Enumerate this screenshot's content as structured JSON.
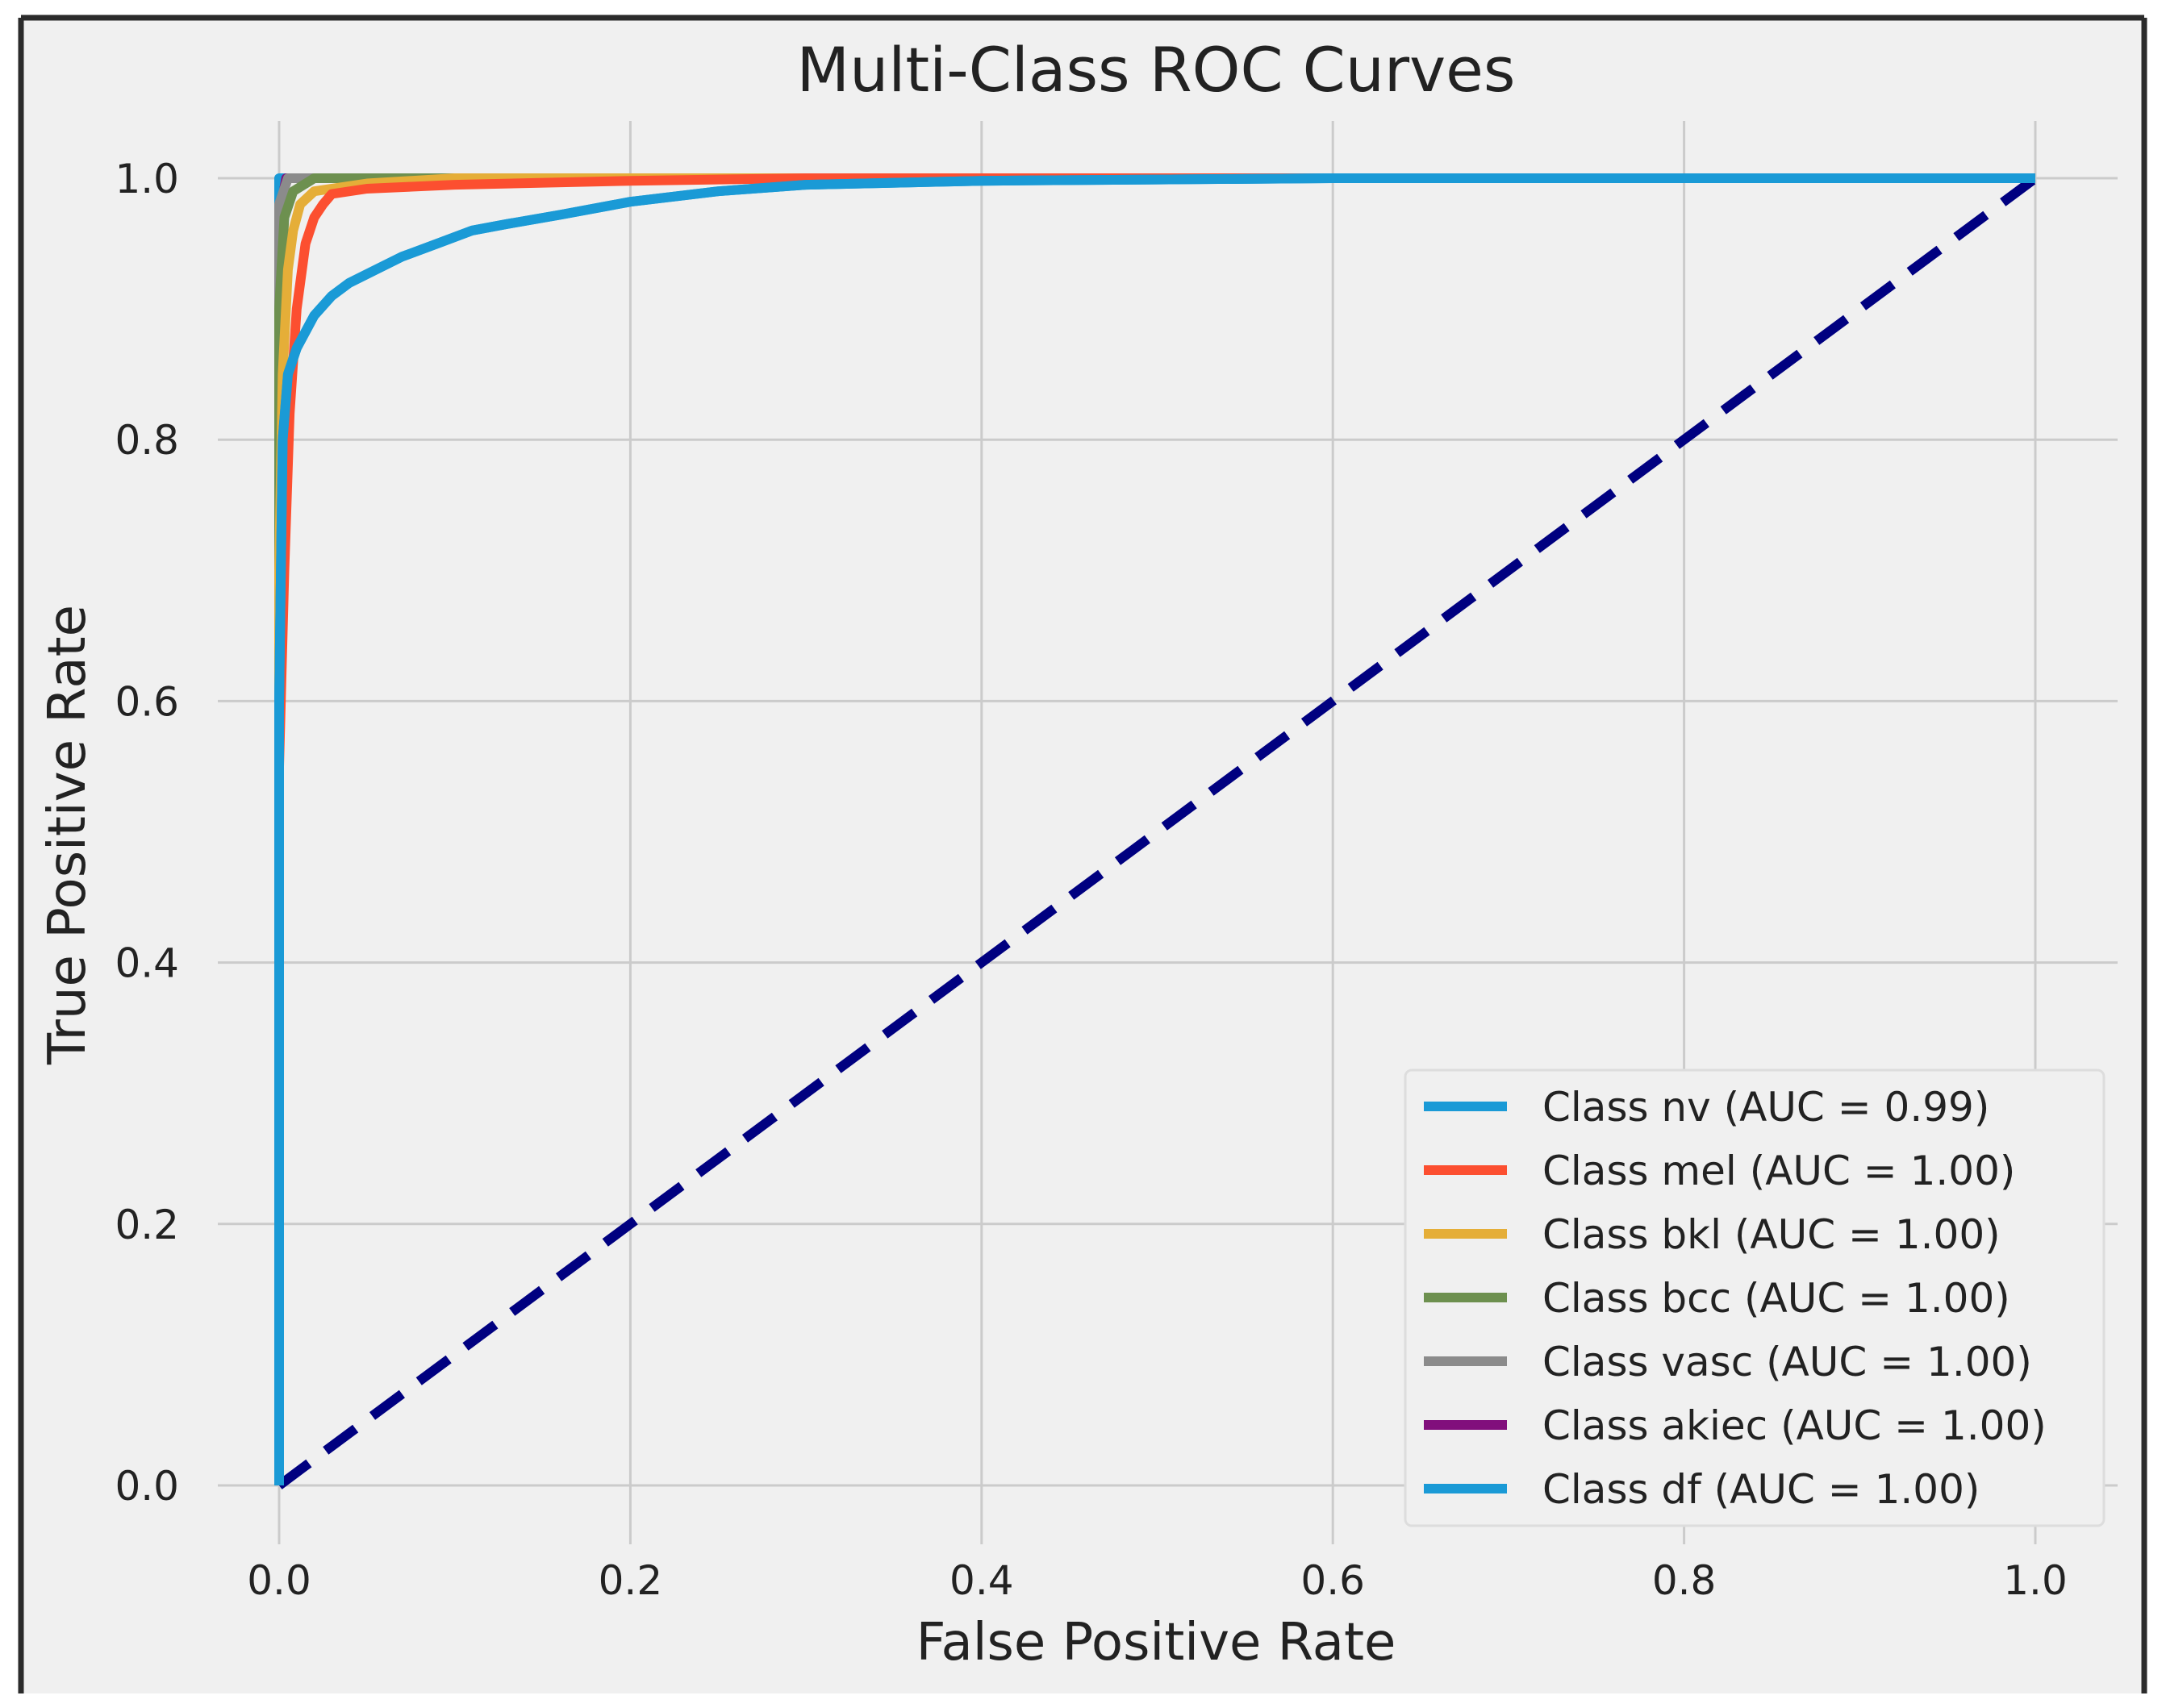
{
  "chart_data": {
    "type": "line",
    "title": "Multi-Class ROC Curves",
    "xlabel": "False Positive Rate",
    "ylabel": "True Positive Rate",
    "xlim": [
      0.0,
      1.0
    ],
    "ylim": [
      0.0,
      1.0
    ],
    "xticks": [
      "0.0",
      "0.2",
      "0.4",
      "0.6",
      "0.8",
      "1.0"
    ],
    "yticks": [
      "0.0",
      "0.2",
      "0.4",
      "0.6",
      "0.8",
      "1.0"
    ],
    "xtick_values": [
      0.0,
      0.2,
      0.4,
      0.6,
      0.8,
      1.0
    ],
    "ytick_values": [
      0.0,
      0.2,
      0.4,
      0.6,
      0.8,
      1.0
    ],
    "grid": true,
    "legend_position": "lower-right",
    "colors": {
      "figure_bg": "#f0f0f0",
      "grid": "#cbcbcb",
      "text": "#222222",
      "frame": "#2b2b2b",
      "diagonal": "#000080"
    },
    "diagonal": {
      "x": [
        0.0,
        1.0
      ],
      "y": [
        0.0,
        1.0
      ],
      "style": "dashed"
    },
    "series": [
      {
        "name": "Class nv (AUC = 0.99)",
        "color": "#1a9ad6",
        "x": [
          0.0,
          0.0,
          0.002,
          0.005,
          0.01,
          0.02,
          0.03,
          0.04,
          0.055,
          0.07,
          0.09,
          0.11,
          0.13,
          0.16,
          0.2,
          0.25,
          0.3,
          0.4,
          0.5,
          0.6,
          0.8,
          1.0
        ],
        "y": [
          0.0,
          0.6,
          0.8,
          0.85,
          0.87,
          0.895,
          0.91,
          0.92,
          0.93,
          0.94,
          0.95,
          0.96,
          0.965,
          0.972,
          0.982,
          0.99,
          0.995,
          0.998,
          0.999,
          1.0,
          1.0,
          1.0
        ]
      },
      {
        "name": "Class mel (AUC = 1.00)",
        "color": "#fc4f30",
        "x": [
          0.0,
          0.0,
          0.003,
          0.006,
          0.01,
          0.015,
          0.02,
          0.025,
          0.03,
          0.05,
          0.1,
          0.2,
          0.3,
          1.0
        ],
        "y": [
          0.0,
          0.55,
          0.7,
          0.82,
          0.9,
          0.95,
          0.97,
          0.98,
          0.988,
          0.992,
          0.995,
          0.998,
          1.0,
          1.0
        ]
      },
      {
        "name": "Class bkl (AUC = 1.00)",
        "color": "#e5ae38",
        "x": [
          0.0,
          0.0,
          0.002,
          0.005,
          0.008,
          0.012,
          0.02,
          0.05,
          0.1,
          1.0
        ],
        "y": [
          0.0,
          0.7,
          0.85,
          0.93,
          0.96,
          0.98,
          0.99,
          0.996,
          1.0,
          1.0
        ]
      },
      {
        "name": "Class bcc (AUC = 1.00)",
        "color": "#6d904f",
        "x": [
          0.0,
          0.0,
          0.003,
          0.008,
          0.02,
          1.0
        ],
        "y": [
          0.0,
          0.9,
          0.97,
          0.99,
          1.0,
          1.0
        ]
      },
      {
        "name": "Class vasc (AUC = 1.00)",
        "color": "#8b8b8b",
        "x": [
          0.0,
          0.0,
          0.005,
          1.0
        ],
        "y": [
          0.0,
          0.98,
          1.0,
          1.0
        ]
      },
      {
        "name": "Class akiec (AUC = 1.00)",
        "color": "#810f7c",
        "x": [
          0.0,
          0.0,
          0.004,
          1.0
        ],
        "y": [
          0.0,
          0.97,
          1.0,
          1.0
        ]
      },
      {
        "name": "Class df (AUC = 1.00)",
        "color": "#1a9ad6",
        "x": [
          0.0,
          0.0,
          1.0
        ],
        "y": [
          0.0,
          1.0,
          1.0
        ]
      }
    ]
  }
}
